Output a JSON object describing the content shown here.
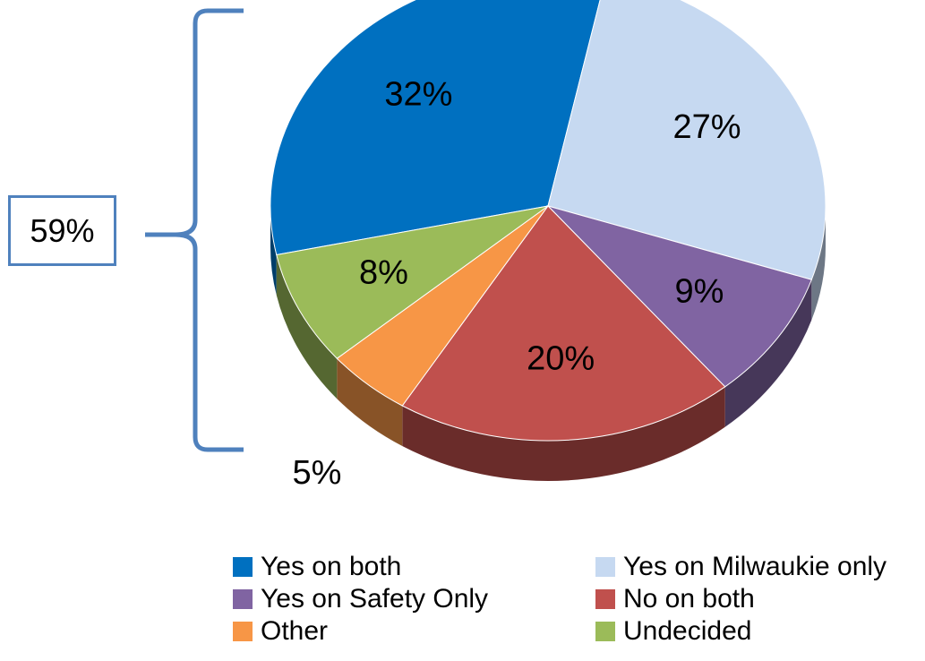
{
  "chart_data": {
    "type": "pie",
    "title": "",
    "slices": [
      {
        "label": "Yes on both",
        "value": 32,
        "display": "32%",
        "color": "#0070c0"
      },
      {
        "label": "Yes on Milwaukie only",
        "value": 27,
        "display": "27%",
        "color": "#c6d9f1"
      },
      {
        "label": "Yes on Safety Only",
        "value": 9,
        "display": "9%",
        "color": "#8064a2"
      },
      {
        "label": "No on both",
        "value": 20,
        "display": "20%",
        "color": "#c0504d"
      },
      {
        "label": "Other",
        "value": 5,
        "display": "5%",
        "color": "#f79646"
      },
      {
        "label": "Undecided",
        "value": 8,
        "display": "8%",
        "color": "#9bbb59"
      }
    ],
    "legend_position": "bottom"
  },
  "annotation": {
    "bracket_label": "59%",
    "bracket_color": "#4f81bd"
  }
}
